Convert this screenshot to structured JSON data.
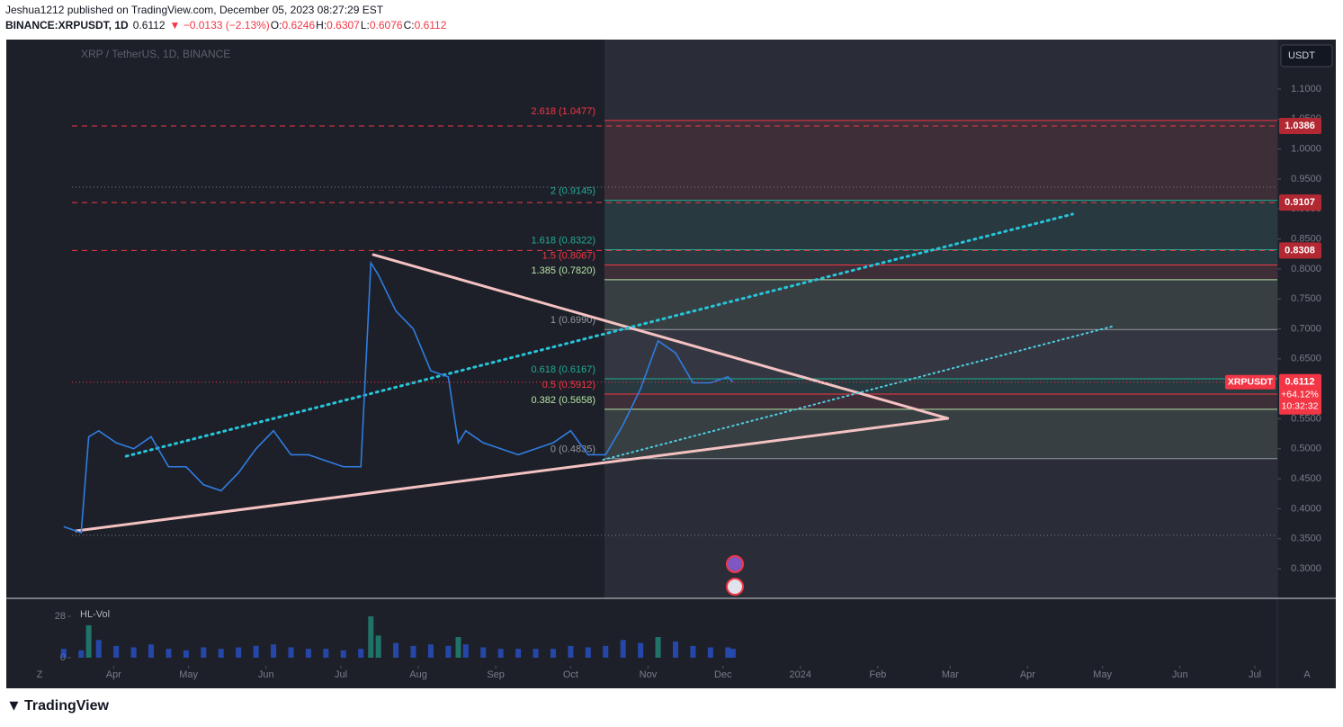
{
  "header": {
    "line1": "Jeshua1212 published on TradingView.com, December 05, 2023 08:27:29 EST",
    "symbol": "BINANCE:XRPUSDT, 1D",
    "last": "0.6112",
    "change": "▼ −0.0133 (−2.13%)",
    "ohlc": [
      {
        "key": "O:",
        "value": "0.6246"
      },
      {
        "key": "H:",
        "value": "0.6307"
      },
      {
        "key": "L:",
        "value": "0.6076"
      },
      {
        "key": "C:",
        "value": "0.6112"
      }
    ]
  },
  "chart_data": {
    "type": "line",
    "watermark": "XRP / TetherUS, 1D, BINANCE",
    "currency": "USDT",
    "x": [
      "2023-03-12",
      "2023-03-19",
      "2023-03-22",
      "2023-03-26",
      "2023-04-02",
      "2023-04-09",
      "2023-04-16",
      "2023-04-23",
      "2023-04-30",
      "2023-05-07",
      "2023-05-14",
      "2023-05-21",
      "2023-05-28",
      "2023-06-04",
      "2023-06-11",
      "2023-06-18",
      "2023-06-25",
      "2023-07-02",
      "2023-07-09",
      "2023-07-13",
      "2023-07-16",
      "2023-07-23",
      "2023-07-30",
      "2023-08-06",
      "2023-08-13",
      "2023-08-17",
      "2023-08-20",
      "2023-08-27",
      "2023-09-03",
      "2023-09-10",
      "2023-09-17",
      "2023-09-24",
      "2023-10-01",
      "2023-10-08",
      "2023-10-15",
      "2023-10-22",
      "2023-10-29",
      "2023-11-05",
      "2023-11-12",
      "2023-11-19",
      "2023-11-26",
      "2023-12-03",
      "2023-12-05"
    ],
    "series": [
      {
        "name": "XRPUSDT",
        "color": "#2f7de1",
        "values": [
          0.37,
          0.36,
          0.52,
          0.53,
          0.51,
          0.5,
          0.52,
          0.47,
          0.47,
          0.44,
          0.43,
          0.46,
          0.5,
          0.53,
          0.49,
          0.49,
          0.48,
          0.47,
          0.47,
          0.81,
          0.79,
          0.73,
          0.7,
          0.63,
          0.62,
          0.51,
          0.53,
          0.51,
          0.5,
          0.49,
          0.5,
          0.51,
          0.53,
          0.49,
          0.49,
          0.54,
          0.6,
          0.68,
          0.66,
          0.61,
          0.61,
          0.62,
          0.6112
        ]
      }
    ],
    "xlim": [
      "2023-02-17",
      "2024-07-10"
    ],
    "xticks": [
      {
        "value": "2023-04-01",
        "label": "Apr"
      },
      {
        "value": "2023-05-01",
        "label": "May"
      },
      {
        "value": "2023-06-01",
        "label": "Jun"
      },
      {
        "value": "2023-07-01",
        "label": "Jul"
      },
      {
        "value": "2023-08-01",
        "label": "Aug"
      },
      {
        "value": "2023-09-01",
        "label": "Sep"
      },
      {
        "value": "2023-10-01",
        "label": "Oct"
      },
      {
        "value": "2023-11-01",
        "label": "Nov"
      },
      {
        "value": "2023-12-01",
        "label": "Dec"
      },
      {
        "value": "2024-01-01",
        "label": "2024"
      },
      {
        "value": "2024-02-01",
        "label": "Feb"
      },
      {
        "value": "2024-03-01",
        "label": "Mar"
      },
      {
        "value": "2024-04-01",
        "label": "Apr"
      },
      {
        "value": "2024-05-01",
        "label": "May"
      },
      {
        "value": "2024-06-01",
        "label": "Jun"
      },
      {
        "value": "2024-07-01",
        "label": "Jul"
      }
    ],
    "axis_ends": [
      "Z",
      "A"
    ],
    "ylim": [
      0.2505,
      1.1826
    ],
    "yticks": [
      {
        "value": 0.3,
        "label": "0.3000"
      },
      {
        "value": 0.35,
        "label": "0.3500"
      },
      {
        "value": 0.4,
        "label": "0.4000"
      },
      {
        "value": 0.45,
        "label": "0.4500"
      },
      {
        "value": 0.5,
        "label": "0.5000"
      },
      {
        "value": 0.55,
        "label": "0.5500"
      },
      {
        "value": 0.65,
        "label": "0.6500"
      },
      {
        "value": 0.7,
        "label": "0.7000"
      },
      {
        "value": 0.75,
        "label": "0.7500"
      },
      {
        "value": 0.8,
        "label": "0.8000"
      },
      {
        "value": 0.85,
        "label": "0.8500"
      },
      {
        "value": 0.9,
        "label": "0.9000"
      },
      {
        "value": 0.95,
        "label": "0.9500"
      },
      {
        "value": 1.0,
        "label": "1.0000"
      },
      {
        "value": 1.05,
        "label": "1.0500"
      },
      {
        "value": 1.1,
        "label": "1.1000"
      }
    ],
    "fib_levels": [
      {
        "label": "2.618 (1.0477)",
        "value": 1.0477,
        "color": "#f23645"
      },
      {
        "label": "2 (0.9145)",
        "value": 0.9145,
        "color": "#22ab94"
      },
      {
        "label": "1.618 (0.8322)",
        "value": 0.8322,
        "color": "#22ab94"
      },
      {
        "label": "1.5 (0.8067)",
        "value": 0.8067,
        "color": "#f23645"
      },
      {
        "label": "1.385 (0.7820)",
        "value": 0.782,
        "color": "#b5e3a6"
      },
      {
        "label": "1 (0.6990)",
        "value": 0.699,
        "color": "#9598a1"
      },
      {
        "label": "0.618 (0.6167)",
        "value": 0.6167,
        "color": "#22ab94"
      },
      {
        "label": "0.5 (0.5912)",
        "value": 0.5912,
        "color": "#f23645"
      },
      {
        "label": "0.382 (0.5658)",
        "value": 0.5658,
        "color": "#b5e3a6"
      },
      {
        "label": "0 (0.4835)",
        "value": 0.4835,
        "color": "#9598a1"
      }
    ],
    "horizontal_levels": [
      {
        "value": 1.0386,
        "color": "#f23645"
      },
      {
        "value": 0.9107,
        "color": "#f23645"
      },
      {
        "value": 0.8308,
        "color": "#f23645"
      }
    ],
    "dotted_levels": [
      {
        "value": 0.9364,
        "color": "#787b86"
      },
      {
        "value": 0.3556,
        "color": "#787b86"
      }
    ],
    "trendlines": [
      {
        "from": [
          "2023-03-17",
          0.363
        ],
        "to": [
          "2024-02-29",
          0.5507
        ],
        "color": "#f4c2c2",
        "style": "solid"
      },
      {
        "from": [
          "2023-07-14",
          0.8238
        ],
        "to": [
          "2024-02-29",
          0.5507
        ],
        "color": "#f4c2c2",
        "style": "solid"
      },
      {
        "from": [
          "2023-04-06",
          0.4876
        ],
        "to": [
          "2024-04-19",
          0.8914
        ],
        "color": "#26c6da",
        "style": "dotted"
      },
      {
        "from": [
          "2023-10-14",
          0.4816
        ],
        "to": [
          "2024-05-06",
          0.7053
        ],
        "color": "#4dd0e1",
        "style": "thin-dotted"
      }
    ],
    "price_badge": {
      "change": "+64.12%",
      "countdown": "10:32:32",
      "color": "#f23645"
    },
    "volume": {
      "name": "HL-Vol",
      "color": "#2962ff",
      "spike_color": "#22ab94",
      "ylim": [
        -5.5,
        39
      ],
      "yticks": [
        0,
        28
      ],
      "values": [
        6,
        5,
        22,
        12,
        8,
        7,
        9,
        6,
        5,
        7,
        6,
        7,
        8,
        9,
        7,
        6,
        6,
        5,
        6,
        28,
        15,
        10,
        8,
        9,
        8,
        14,
        9,
        7,
        6,
        6,
        6,
        6,
        8,
        7,
        8,
        12,
        10,
        14,
        11,
        8,
        7,
        7,
        6
      ]
    }
  },
  "footer": {
    "brand": "TradingView"
  }
}
